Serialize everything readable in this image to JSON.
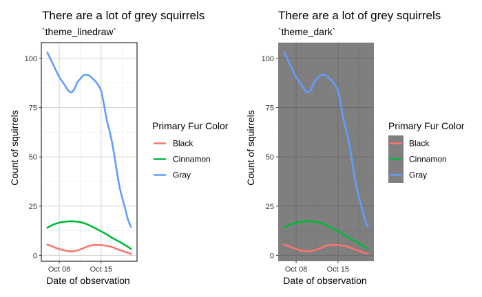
{
  "chart_data": [
    {
      "type": "line",
      "title": "There are a lot of grey squirrels",
      "subtitle": "`theme_linedraw`",
      "theme": "linedraw",
      "xlabel": "Date of observation",
      "ylabel": "Count of squirrels",
      "x_tick_labels": [
        "Oct 08",
        "Oct 15"
      ],
      "x_ticks": [
        "2018-10-08",
        "2018-10-15"
      ],
      "x_range": [
        "2018-10-05",
        "2018-10-21"
      ],
      "y_ticks": [
        0,
        25,
        50,
        75,
        100
      ],
      "ylim": [
        -3,
        108
      ],
      "grid": true,
      "legend_title": "Primary Fur Color",
      "legend_position": "right",
      "series": [
        {
          "name": "Black",
          "color": "#F8766D",
          "x": [
            "2018-10-06",
            "2018-10-07",
            "2018-10-08",
            "2018-10-09",
            "2018-10-10",
            "2018-10-11",
            "2018-10-12",
            "2018-10-13",
            "2018-10-14",
            "2018-10-15",
            "2018-10-16",
            "2018-10-17",
            "2018-10-18",
            "2018-10-19",
            "2018-10-20"
          ],
          "y": [
            5.5,
            4.3,
            3.2,
            2.4,
            2.0,
            2.5,
            3.6,
            4.8,
            5.3,
            5.2,
            4.8,
            4.0,
            2.8,
            1.8,
            0.7
          ]
        },
        {
          "name": "Cinnamon",
          "color": "#00BA38",
          "x": [
            "2018-10-06",
            "2018-10-07",
            "2018-10-08",
            "2018-10-09",
            "2018-10-10",
            "2018-10-11",
            "2018-10-12",
            "2018-10-13",
            "2018-10-14",
            "2018-10-15",
            "2018-10-16",
            "2018-10-17",
            "2018-10-18",
            "2018-10-19",
            "2018-10-20"
          ],
          "y": [
            14,
            15.6,
            16.6,
            17.1,
            17.3,
            17.1,
            16.5,
            15.3,
            13.8,
            12.2,
            10.5,
            8.6,
            7.0,
            5.2,
            3.3
          ]
        },
        {
          "name": "Gray",
          "color": "#619CFF",
          "x": [
            "2018-10-06",
            "2018-10-06.5",
            "2018-10-07",
            "2018-10-07.5",
            "2018-10-08",
            "2018-10-08.5",
            "2018-10-09",
            "2018-10-09.5",
            "2018-10-10",
            "2018-10-10.5",
            "2018-10-11",
            "2018-10-11.5",
            "2018-10-12",
            "2018-10-12.5",
            "2018-10-13",
            "2018-10-13.5",
            "2018-10-14",
            "2018-10-14.5",
            "2018-10-15",
            "2018-10-15.5",
            "2018-10-16",
            "2018-10-16.5",
            "2018-10-17",
            "2018-10-17.5",
            "2018-10-18",
            "2018-10-18.5",
            "2018-10-19",
            "2018-10-19.5",
            "2018-10-20"
          ],
          "y": [
            103,
            100,
            96.8,
            93.6,
            90.5,
            88.3,
            86,
            83.7,
            82.8,
            84.2,
            87.8,
            89.6,
            91.3,
            91.6,
            91.3,
            90,
            88.5,
            86.5,
            83.5,
            76,
            68,
            62,
            54.5,
            45,
            36,
            29.5,
            24,
            18,
            14.5
          ]
        }
      ]
    },
    {
      "type": "line",
      "title": "There are a lot of grey squirrels",
      "subtitle": "`theme_dark`",
      "theme": "dark",
      "xlabel": "Date of observation",
      "ylabel": "Count of squirrels",
      "x_tick_labels": [
        "Oct 08",
        "Oct 15"
      ],
      "x_ticks": [
        "2018-10-08",
        "2018-10-15"
      ],
      "x_range": [
        "2018-10-05",
        "2018-10-21"
      ],
      "y_ticks": [
        0,
        25,
        50,
        75,
        100
      ],
      "ylim": [
        -3,
        108
      ],
      "grid": true,
      "legend_title": "Primary Fur Color",
      "legend_position": "right",
      "series": [
        {
          "name": "Black",
          "color": "#F8766D",
          "x": [
            "2018-10-06",
            "2018-10-07",
            "2018-10-08",
            "2018-10-09",
            "2018-10-10",
            "2018-10-11",
            "2018-10-12",
            "2018-10-13",
            "2018-10-14",
            "2018-10-15",
            "2018-10-16",
            "2018-10-17",
            "2018-10-18",
            "2018-10-19",
            "2018-10-20"
          ],
          "y": [
            5.5,
            4.3,
            3.2,
            2.4,
            2.0,
            2.5,
            3.6,
            4.8,
            5.3,
            5.2,
            4.8,
            4.0,
            2.8,
            1.8,
            0.7
          ]
        },
        {
          "name": "Cinnamon",
          "color": "#00BA38",
          "x": [
            "2018-10-06",
            "2018-10-07",
            "2018-10-08",
            "2018-10-09",
            "2018-10-10",
            "2018-10-11",
            "2018-10-12",
            "2018-10-13",
            "2018-10-14",
            "2018-10-15",
            "2018-10-16",
            "2018-10-17",
            "2018-10-18",
            "2018-10-19",
            "2018-10-20"
          ],
          "y": [
            14,
            15.6,
            16.6,
            17.1,
            17.3,
            17.1,
            16.5,
            15.3,
            13.8,
            12.2,
            10.5,
            8.6,
            7.0,
            5.2,
            3.3
          ]
        },
        {
          "name": "Gray",
          "color": "#619CFF",
          "x": [
            "2018-10-06",
            "2018-10-06.5",
            "2018-10-07",
            "2018-10-07.5",
            "2018-10-08",
            "2018-10-08.5",
            "2018-10-09",
            "2018-10-09.5",
            "2018-10-10",
            "2018-10-10.5",
            "2018-10-11",
            "2018-10-11.5",
            "2018-10-12",
            "2018-10-12.5",
            "2018-10-13",
            "2018-10-13.5",
            "2018-10-14",
            "2018-10-14.5",
            "2018-10-15",
            "2018-10-15.5",
            "2018-10-16",
            "2018-10-16.5",
            "2018-10-17",
            "2018-10-17.5",
            "2018-10-18",
            "2018-10-18.5",
            "2018-10-19",
            "2018-10-19.5",
            "2018-10-20"
          ],
          "y": [
            103,
            100,
            96.8,
            93.6,
            90.5,
            88.3,
            86,
            83.7,
            82.8,
            84.2,
            87.8,
            89.6,
            91.3,
            91.6,
            91.3,
            90,
            88.5,
            86.5,
            83.5,
            76,
            68,
            62,
            54.5,
            45,
            36,
            29.5,
            24,
            18,
            14.5
          ]
        }
      ]
    }
  ]
}
